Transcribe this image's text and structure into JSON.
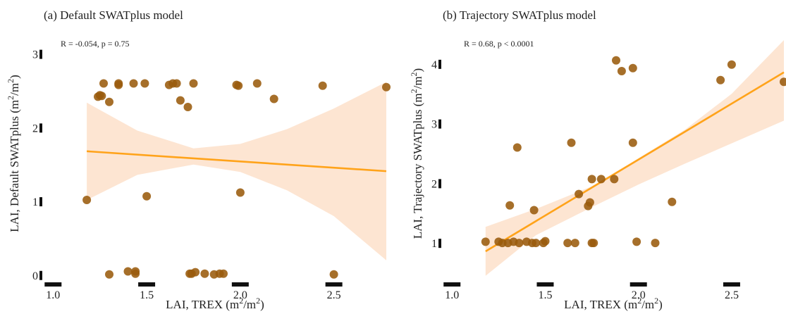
{
  "chart_data": [
    {
      "type": "scatter",
      "title": "(a) Default SWATplus model",
      "annotation": "R = -0.054, p = 0.75",
      "xlabel": "LAI, TREX (m²/m²)",
      "ylabel": "LAI, Default SWATplus (m²/m²)",
      "xlim": [
        0.95,
        2.78
      ],
      "ylim": [
        -0.05,
        3.35
      ],
      "xticks": [
        1.0,
        1.5,
        2.0,
        2.5
      ],
      "yticks": [
        0,
        1,
        2,
        3
      ],
      "point_color": "#9a5b0c",
      "fit_color": "#ffa31a",
      "band_color": "#fde5d2",
      "fit": {
        "x": [
          1.18,
          2.78
        ],
        "y": [
          1.68,
          1.41
        ]
      },
      "band": {
        "x": [
          1.18,
          1.45,
          1.75,
          2.0,
          2.25,
          2.5,
          2.78
        ],
        "lower": [
          1.02,
          1.36,
          1.5,
          1.4,
          1.15,
          0.8,
          0.2
        ],
        "upper": [
          2.34,
          1.96,
          1.72,
          1.78,
          1.98,
          2.26,
          2.62
        ]
      },
      "points": [
        {
          "x": 1.18,
          "y": 1.02
        },
        {
          "x": 1.24,
          "y": 2.42
        },
        {
          "x": 1.25,
          "y": 2.44
        },
        {
          "x": 1.26,
          "y": 2.43
        },
        {
          "x": 1.27,
          "y": 2.6
        },
        {
          "x": 1.3,
          "y": 2.35
        },
        {
          "x": 1.3,
          "y": 0.01
        },
        {
          "x": 1.35,
          "y": 2.58
        },
        {
          "x": 1.35,
          "y": 2.6
        },
        {
          "x": 1.4,
          "y": 0.05
        },
        {
          "x": 1.43,
          "y": 2.6
        },
        {
          "x": 1.44,
          "y": 0.05
        },
        {
          "x": 1.44,
          "y": 0.02
        },
        {
          "x": 1.49,
          "y": 2.6
        },
        {
          "x": 1.5,
          "y": 1.07
        },
        {
          "x": 1.62,
          "y": 2.58
        },
        {
          "x": 1.64,
          "y": 2.6
        },
        {
          "x": 1.66,
          "y": 2.6
        },
        {
          "x": 1.68,
          "y": 2.37
        },
        {
          "x": 1.72,
          "y": 2.28
        },
        {
          "x": 1.73,
          "y": 0.02
        },
        {
          "x": 1.74,
          "y": 0.02
        },
        {
          "x": 1.75,
          "y": 2.6
        },
        {
          "x": 1.76,
          "y": 0.04
        },
        {
          "x": 1.81,
          "y": 0.02
        },
        {
          "x": 1.86,
          "y": 0.01
        },
        {
          "x": 1.89,
          "y": 0.02
        },
        {
          "x": 1.91,
          "y": 0.02
        },
        {
          "x": 1.98,
          "y": 2.58
        },
        {
          "x": 1.99,
          "y": 2.57
        },
        {
          "x": 2.0,
          "y": 1.12
        },
        {
          "x": 2.09,
          "y": 2.6
        },
        {
          "x": 2.18,
          "y": 2.39
        },
        {
          "x": 2.44,
          "y": 2.57
        },
        {
          "x": 2.5,
          "y": 0.01
        },
        {
          "x": 2.78,
          "y": 2.55
        }
      ]
    },
    {
      "type": "scatter",
      "title": "(b) Trajectory SWATplus model",
      "annotation": "R = 0.68, p < 0.0001",
      "xlabel": "LAI, TREX (m²/m²)",
      "ylabel": "LAI, Trajectory SWATplus (m²/m²)",
      "xlim": [
        0.95,
        2.78
      ],
      "ylim": [
        0.4,
        4.6
      ],
      "xticks": [
        1.0,
        1.5,
        2.0,
        2.5
      ],
      "yticks": [
        1,
        2,
        3,
        4
      ],
      "point_color": "#9a5b0c",
      "fit_color": "#ffa31a",
      "band_color": "#fde5d2",
      "fit": {
        "x": [
          1.18,
          2.78
        ],
        "y": [
          0.86,
          3.86
        ]
      },
      "band": {
        "x": [
          1.18,
          1.45,
          1.75,
          2.0,
          2.25,
          2.5,
          2.78
        ],
        "lower": [
          0.45,
          1.13,
          1.6,
          1.98,
          2.33,
          2.67,
          3.05
        ],
        "upper": [
          1.27,
          1.57,
          1.95,
          2.42,
          2.9,
          3.5,
          4.4
        ]
      },
      "points": [
        {
          "x": 1.18,
          "y": 1.02
        },
        {
          "x": 1.25,
          "y": 1.02
        },
        {
          "x": 1.27,
          "y": 1.0
        },
        {
          "x": 1.3,
          "y": 1.0
        },
        {
          "x": 1.31,
          "y": 1.63
        },
        {
          "x": 1.33,
          "y": 1.02
        },
        {
          "x": 1.35,
          "y": 2.6
        },
        {
          "x": 1.36,
          "y": 1.0
        },
        {
          "x": 1.4,
          "y": 1.02
        },
        {
          "x": 1.43,
          "y": 1.0
        },
        {
          "x": 1.44,
          "y": 1.55
        },
        {
          "x": 1.45,
          "y": 1.0
        },
        {
          "x": 1.49,
          "y": 1.0
        },
        {
          "x": 1.5,
          "y": 1.03
        },
        {
          "x": 1.62,
          "y": 1.0
        },
        {
          "x": 1.64,
          "y": 2.68
        },
        {
          "x": 1.66,
          "y": 1.0
        },
        {
          "x": 1.68,
          "y": 1.82
        },
        {
          "x": 1.73,
          "y": 1.62
        },
        {
          "x": 1.74,
          "y": 1.68
        },
        {
          "x": 1.75,
          "y": 1.0
        },
        {
          "x": 1.75,
          "y": 2.07
        },
        {
          "x": 1.76,
          "y": 1.0
        },
        {
          "x": 1.8,
          "y": 2.07
        },
        {
          "x": 1.87,
          "y": 2.07
        },
        {
          "x": 1.88,
          "y": 4.06
        },
        {
          "x": 1.91,
          "y": 3.88
        },
        {
          "x": 1.97,
          "y": 3.93
        },
        {
          "x": 1.97,
          "y": 2.68
        },
        {
          "x": 1.99,
          "y": 1.02
        },
        {
          "x": 2.09,
          "y": 1.0
        },
        {
          "x": 2.18,
          "y": 1.69
        },
        {
          "x": 2.44,
          "y": 3.73
        },
        {
          "x": 2.5,
          "y": 3.99
        },
        {
          "x": 2.78,
          "y": 3.7
        }
      ]
    }
  ]
}
